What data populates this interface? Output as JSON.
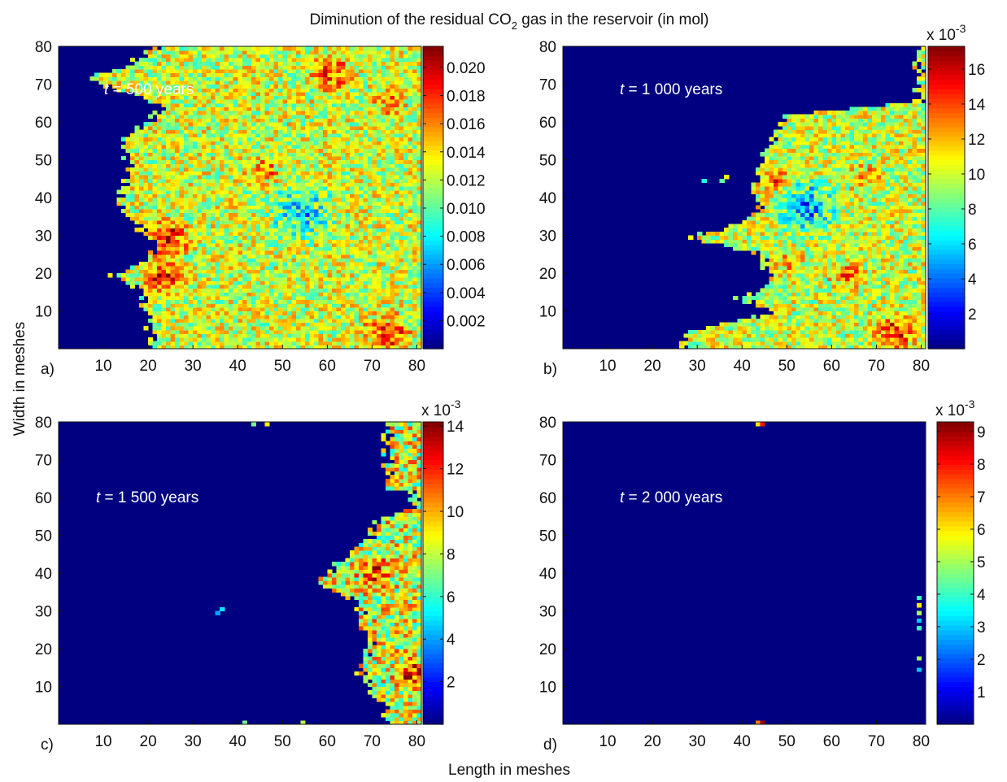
{
  "figure": {
    "title_main": "Diminution of the residual CO",
    "title_sub": "2",
    "title_rest": " gas in the reservoir (in mol)",
    "xlabel": "Length in meshes",
    "ylabel": "Width in meshes"
  },
  "chart_data": [
    {
      "type": "heatmap",
      "panel_label": "a)",
      "annotation_var": "t",
      "annotation_rest": " = 500 years",
      "x_ticks": [
        10,
        20,
        30,
        40,
        50,
        60,
        70,
        80
      ],
      "y_ticks": [
        10,
        20,
        30,
        40,
        50,
        60,
        70,
        80
      ],
      "xlim": [
        0,
        81
      ],
      "ylim": [
        0,
        80
      ],
      "colorbar": {
        "ticks": [
          "0.002",
          "0.004",
          "0.006",
          "0.008",
          "0.010",
          "0.012",
          "0.014",
          "0.016",
          "0.018",
          "0.020"
        ],
        "tick_values": [
          0.002,
          0.004,
          0.006,
          0.008,
          0.01,
          0.012,
          0.014,
          0.016,
          0.018,
          0.02
        ],
        "range": [
          0,
          0.0215
        ],
        "multiplier_base": "",
        "multiplier_exp": ""
      },
      "front_profile": [
        [
          80,
          22
        ],
        [
          76,
          17
        ],
        [
          72,
          7
        ],
        [
          68,
          17
        ],
        [
          64,
          24
        ],
        [
          60,
          20
        ],
        [
          56,
          15
        ],
        [
          52,
          16
        ],
        [
          48,
          17
        ],
        [
          44,
          15
        ],
        [
          40,
          14
        ],
        [
          36,
          15
        ],
        [
          32,
          19
        ],
        [
          28,
          23
        ],
        [
          24,
          20
        ],
        [
          20,
          13
        ],
        [
          16,
          19
        ],
        [
          12,
          20
        ],
        [
          8,
          21
        ],
        [
          4,
          21
        ],
        [
          0,
          21
        ]
      ],
      "hotspots": [
        {
          "x": 61,
          "y": 74,
          "r": 4,
          "v": 0.019
        },
        {
          "x": 25,
          "y": 30,
          "r": 4,
          "v": 0.019
        },
        {
          "x": 24,
          "y": 20,
          "r": 4,
          "v": 0.019
        },
        {
          "x": 74,
          "y": 5,
          "r": 4,
          "v": 0.019
        },
        {
          "x": 46,
          "y": 48,
          "r": 3,
          "v": 0.017
        },
        {
          "x": 74,
          "y": 66,
          "r": 3,
          "v": 0.017
        }
      ],
      "coldspots": [
        {
          "x": 55,
          "y": 37,
          "r": 6,
          "v": 0.007
        }
      ],
      "base_value": 0.0125,
      "spread": 0.0045,
      "isolated": []
    },
    {
      "type": "heatmap",
      "panel_label": "b)",
      "annotation_var": "t",
      "annotation_rest": " = 1 000 years",
      "x_ticks": [
        10,
        20,
        30,
        40,
        50,
        60,
        70,
        80
      ],
      "y_ticks": [
        10,
        20,
        30,
        40,
        50,
        60,
        70,
        80
      ],
      "xlim": [
        0,
        81
      ],
      "ylim": [
        0,
        80
      ],
      "colorbar": {
        "ticks": [
          "2",
          "4",
          "6",
          "8",
          "10",
          "12",
          "14",
          "16"
        ],
        "tick_values": [
          2,
          4,
          6,
          8,
          10,
          12,
          14,
          16
        ],
        "range": [
          0,
          17.3
        ],
        "multiplier_base": "x 10",
        "multiplier_exp": "-3"
      },
      "front_profile": [
        [
          80,
          80
        ],
        [
          78,
          80
        ],
        [
          66,
          80
        ],
        [
          62,
          49
        ],
        [
          58,
          48
        ],
        [
          54,
          46
        ],
        [
          50,
          45
        ],
        [
          46,
          44
        ],
        [
          42,
          43
        ],
        [
          38,
          45
        ],
        [
          34,
          41
        ],
        [
          30,
          29
        ],
        [
          26,
          44
        ],
        [
          22,
          46
        ],
        [
          18,
          48
        ],
        [
          14,
          40
        ],
        [
          10,
          48
        ],
        [
          6,
          32
        ],
        [
          4,
          28
        ],
        [
          0,
          28
        ]
      ],
      "hotspots": [
        {
          "x": 48,
          "y": 45,
          "r": 3,
          "v": 14
        },
        {
          "x": 64,
          "y": 20,
          "r": 3,
          "v": 14
        },
        {
          "x": 75,
          "y": 5,
          "r": 4,
          "v": 15
        },
        {
          "x": 68,
          "y": 46,
          "r": 3,
          "v": 13
        },
        {
          "x": 51,
          "y": 23,
          "r": 3,
          "v": 13
        }
      ],
      "coldspots": [
        {
          "x": 55,
          "y": 38,
          "r": 6,
          "v": 5
        }
      ],
      "base_value": 10,
      "spread": 3.5,
      "isolated": [
        {
          "x": 32,
          "y": 45,
          "v": 7
        },
        {
          "x": 37,
          "y": 46,
          "v": 11
        },
        {
          "x": 36,
          "y": 45,
          "v": 8
        }
      ]
    },
    {
      "type": "heatmap",
      "panel_label": "c)",
      "annotation_var": "t",
      "annotation_rest": " = 1 500 years",
      "x_ticks": [
        10,
        20,
        30,
        40,
        50,
        60,
        70,
        80
      ],
      "y_ticks": [
        10,
        20,
        30,
        40,
        50,
        60,
        70,
        80
      ],
      "xlim": [
        0,
        81
      ],
      "ylim": [
        0,
        80
      ],
      "colorbar": {
        "ticks": [
          "2",
          "4",
          "6",
          "8",
          "10",
          "12",
          "14"
        ],
        "tick_values": [
          2,
          4,
          6,
          8,
          10,
          12,
          14
        ],
        "range": [
          0,
          14.2
        ],
        "multiplier_base": "x 10",
        "multiplier_exp": "-3"
      },
      "front_profile": [
        [
          62,
          80
        ],
        [
          58,
          80
        ],
        [
          54,
          72
        ],
        [
          50,
          70
        ],
        [
          46,
          66
        ],
        [
          42,
          62
        ],
        [
          38,
          58
        ],
        [
          34,
          66
        ],
        [
          30,
          68
        ],
        [
          26,
          68
        ],
        [
          22,
          70
        ],
        [
          18,
          69
        ],
        [
          14,
          68
        ],
        [
          10,
          70
        ],
        [
          6,
          72
        ],
        [
          4,
          74
        ],
        [
          2,
          74
        ],
        [
          0,
          74
        ]
      ],
      "hotspots": [
        {
          "x": 71,
          "y": 41,
          "r": 3,
          "v": 12
        },
        {
          "x": 79,
          "y": 14,
          "r": 3,
          "v": 13
        }
      ],
      "coldspots": [],
      "base_value": 8.5,
      "spread": 4,
      "isolated": [
        {
          "x": 36,
          "y": 30,
          "v": 4
        },
        {
          "x": 37,
          "y": 31,
          "v": 5
        },
        {
          "x": 55,
          "y": 1,
          "v": 8
        },
        {
          "x": 42,
          "y": 1,
          "v": 7
        },
        {
          "x": 47,
          "y": 80,
          "v": 9
        },
        {
          "x": 44,
          "y": 80,
          "v": 7
        }
      ]
    },
    {
      "type": "heatmap",
      "panel_label": "d)",
      "annotation_var": "t",
      "annotation_rest": " = 2 000 years",
      "x_ticks": [
        10,
        20,
        30,
        40,
        50,
        60,
        70,
        80
      ],
      "y_ticks": [
        10,
        20,
        30,
        40,
        50,
        60,
        70,
        80
      ],
      "xlim": [
        0,
        81
      ],
      "ylim": [
        0,
        80
      ],
      "colorbar": {
        "ticks": [
          "1",
          "2",
          "3",
          "4",
          "5",
          "6",
          "7",
          "8",
          "9"
        ],
        "tick_values": [
          1,
          2,
          3,
          4,
          5,
          6,
          7,
          8,
          9
        ],
        "range": [
          0,
          9.3
        ],
        "multiplier_base": "x 10",
        "multiplier_exp": "-3"
      },
      "front_profile": [],
      "hotspots": [],
      "coldspots": [],
      "base_value": 0,
      "spread": 0,
      "isolated": [
        {
          "x": 80,
          "y": 34,
          "v": 4
        },
        {
          "x": 80,
          "y": 32,
          "v": 6
        },
        {
          "x": 80,
          "y": 30,
          "v": 5
        },
        {
          "x": 80,
          "y": 28,
          "v": 3
        },
        {
          "x": 80,
          "y": 26,
          "v": 4
        },
        {
          "x": 80,
          "y": 18,
          "v": 5
        },
        {
          "x": 80,
          "y": 15,
          "v": 3
        },
        {
          "x": 44,
          "y": 1,
          "v": 7
        },
        {
          "x": 45,
          "y": 1,
          "v": 9
        },
        {
          "x": 44,
          "y": 80,
          "v": 6
        },
        {
          "x": 45,
          "y": 80,
          "v": 8
        }
      ]
    }
  ]
}
